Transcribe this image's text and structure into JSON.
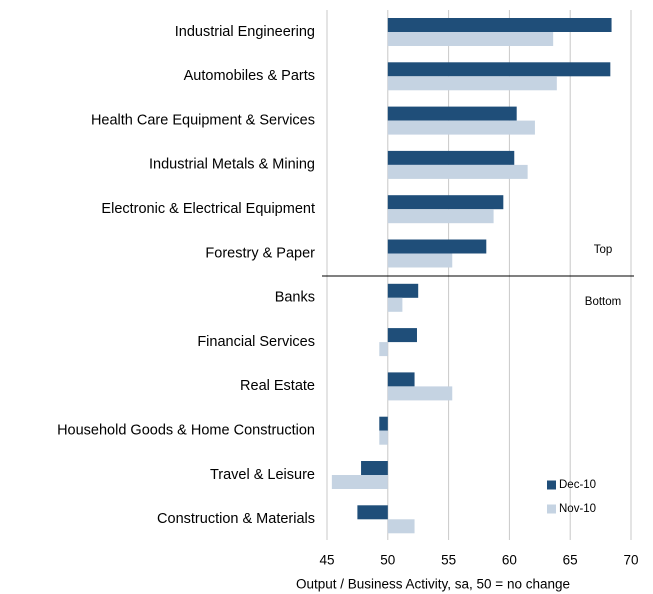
{
  "chart_data": {
    "type": "hbar",
    "xlabel": "Output / Business Activity, sa, 50 = no change",
    "categories": [
      "Industrial Engineering",
      "Automobiles & Parts",
      "Health Care Equipment & Services",
      "Industrial Metals & Mining",
      "Electronic & Electrical Equipment",
      "Forestry & Paper",
      "Banks",
      "Financial Services",
      "Real Estate",
      "Household Goods & Home Construction",
      "Travel & Leisure",
      "Construction & Materials"
    ],
    "series": [
      {
        "name": "Dec-10",
        "color": "#1f4e79",
        "values": [
          68.4,
          68.3,
          60.6,
          60.4,
          59.5,
          58.1,
          52.5,
          52.4,
          52.2,
          49.3,
          47.8,
          47.5
        ]
      },
      {
        "name": "Nov-10",
        "color": "#c5d3e2",
        "values": [
          63.6,
          63.9,
          62.1,
          61.5,
          58.7,
          55.3,
          51.2,
          49.3,
          55.3,
          49.3,
          45.4,
          52.2
        ]
      }
    ],
    "baseline": 50,
    "xlim": [
      45,
      70
    ],
    "xticks": [
      45,
      50,
      55,
      60,
      65,
      70
    ],
    "grid": true,
    "annotations": [
      "Top",
      "Bottom"
    ],
    "legend": "lower right"
  }
}
